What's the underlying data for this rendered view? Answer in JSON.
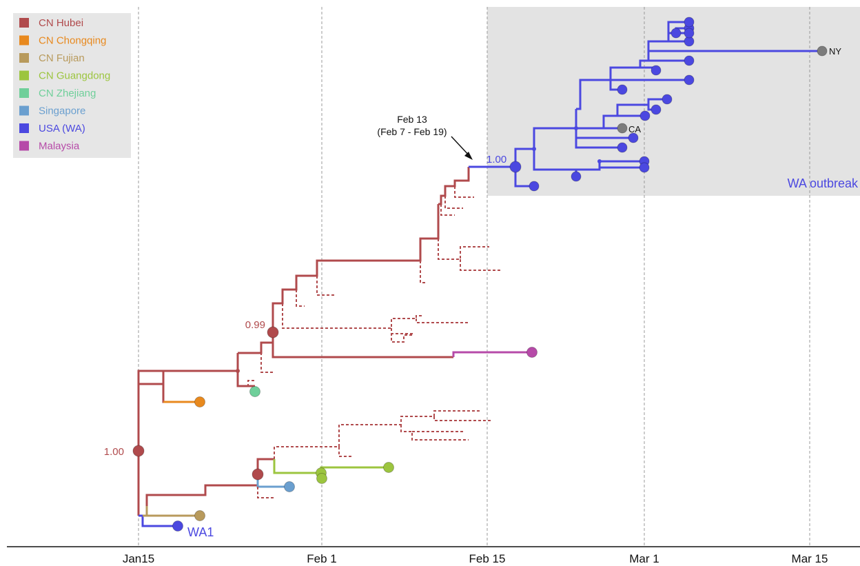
{
  "colors": {
    "hubei": "#b04a4c",
    "chongqing": "#e8891e",
    "fujian": "#b89a5c",
    "guangdong": "#9cc53f",
    "zhejiang": "#6fcf9a",
    "singapore": "#6a9fcf",
    "usa_wa": "#4b48e0",
    "malaysia": "#b64aa8",
    "grey_tip": "#7c7c7c",
    "outbreak_box": "#e3e3e3",
    "legend_box": "#e6e6e6"
  },
  "legend": [
    {
      "label": "CN Hubei",
      "color_key": "hubei"
    },
    {
      "label": "CN Chongqing",
      "color_key": "chongqing"
    },
    {
      "label": "CN Fujian",
      "color_key": "fujian"
    },
    {
      "label": "CN Guangdong",
      "color_key": "guangdong"
    },
    {
      "label": "CN Zhejiang",
      "color_key": "zhejiang"
    },
    {
      "label": "Singapore",
      "color_key": "singapore"
    },
    {
      "label": "USA (WA)",
      "color_key": "usa_wa"
    },
    {
      "label": "Malaysia",
      "color_key": "malaysia"
    }
  ],
  "axis": {
    "ticks": [
      "Jan15",
      "Feb 1",
      "Feb 15",
      "Mar 1",
      "Mar 15"
    ]
  },
  "annotations": {
    "introduction_date": "Feb 13",
    "introduction_interval": "(Feb 7 - Feb 19)",
    "root_support": "1.00",
    "clade_support": "0.99",
    "wa_support": "1.00",
    "wa_outbreak_label": "WA outbreak",
    "wa1_label": "WA1",
    "ny_label": "NY",
    "ca_label": "CA"
  }
}
